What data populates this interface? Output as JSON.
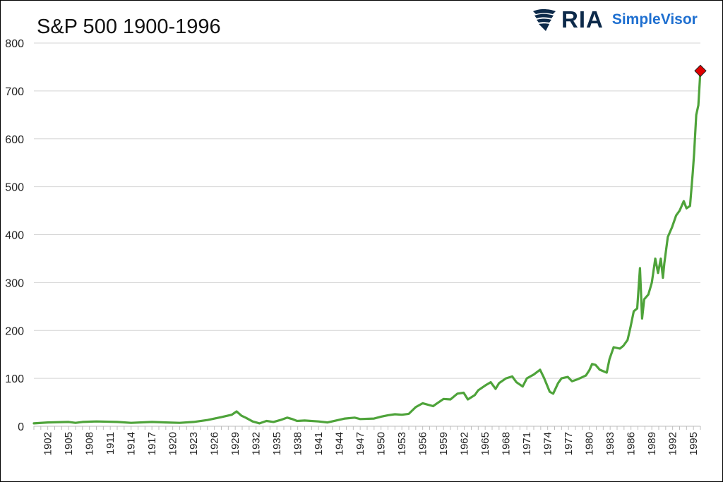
{
  "brand": {
    "name": "RIA",
    "product": "SimpleVisor",
    "colors": {
      "navy": "#0d2a4a",
      "blue": "#1e6fd0"
    }
  },
  "chart_data": {
    "type": "line",
    "title": "S&P 500 1900-1996",
    "xlabel": "",
    "ylabel": "",
    "xlim": [
      1900,
      1996
    ],
    "ylim": [
      0,
      800
    ],
    "yticks": [
      0,
      100,
      200,
      300,
      400,
      500,
      600,
      700,
      800
    ],
    "xtick_labels": [
      "1902",
      "1905",
      "1908",
      "1911",
      "1914",
      "1917",
      "1920",
      "1923",
      "1926",
      "1929",
      "1932",
      "1935",
      "1938",
      "1941",
      "1944",
      "1947",
      "1950",
      "1953",
      "1956",
      "1959",
      "1962",
      "1965",
      "1968",
      "1971",
      "1974",
      "1977",
      "1980",
      "1983",
      "1986",
      "1989",
      "1992",
      "1995"
    ],
    "grid": true,
    "legend": "none",
    "line_color": "#4ea33a",
    "marker_color": "#e00000",
    "series": [
      {
        "x": [
          1900,
          1902,
          1905,
          1906,
          1907,
          1909,
          1912,
          1914,
          1917,
          1919,
          1921,
          1923,
          1925,
          1927,
          1928.5,
          1929.2,
          1929.9,
          1930.5,
          1931.5,
          1932.5,
          1933.5,
          1934.5,
          1935.5,
          1936.5,
          1937.2,
          1937.9,
          1939,
          1941,
          1942.3,
          1943.5,
          1944.8,
          1946.2,
          1947,
          1949,
          1950,
          1951,
          1952,
          1953,
          1954,
          1955,
          1956,
          1957.5,
          1958,
          1959,
          1960,
          1961,
          1961.9,
          1962.5,
          1963.5,
          1964,
          1965,
          1965.8,
          1966.5,
          1967,
          1968,
          1968.9,
          1969.5,
          1970.4,
          1971,
          1972,
          1972.9,
          1973.5,
          1974.3,
          1974.8,
          1975.5,
          1976,
          1976.9,
          1977.5,
          1978.3,
          1978.9,
          1979.5,
          1980,
          1980.4,
          1980.9,
          1981.5,
          1982.5,
          1982.9,
          1983.5,
          1984.4,
          1984.9,
          1985.5,
          1985.9,
          1986.4,
          1986.9,
          1987.3,
          1987.6,
          1987.9,
          1988.5,
          1989,
          1989.5,
          1989.9,
          1990.3,
          1990.6,
          1990.8,
          1991.3,
          1991.9,
          1992.5,
          1993,
          1993.6,
          1994,
          1994.5,
          1994.9,
          1995.1,
          1995.4,
          1995.7,
          1996
        ],
        "y": [
          6,
          8,
          9,
          7,
          9,
          10,
          9,
          7,
          9,
          8,
          7,
          9,
          13,
          19,
          24,
          31,
          22,
          18,
          10,
          6,
          11,
          9,
          13,
          18,
          15,
          11,
          12,
          10,
          8,
          12,
          16,
          18,
          15,
          16,
          20,
          23,
          25,
          24,
          26,
          40,
          48,
          42,
          47,
          57,
          56,
          68,
          70,
          56,
          65,
          75,
          85,
          92,
          78,
          90,
          100,
          104,
          92,
          83,
          100,
          108,
          118,
          100,
          72,
          68,
          90,
          100,
          103,
          94,
          98,
          102,
          106,
          117,
          130,
          128,
          118,
          112,
          140,
          165,
          162,
          168,
          180,
          205,
          240,
          246,
          330,
          225,
          265,
          275,
          300,
          350,
          320,
          350,
          310,
          340,
          395,
          415,
          440,
          450,
          470,
          455,
          460,
          530,
          570,
          650,
          670,
          742
        ]
      }
    ],
    "highlight_point": {
      "x": 1996,
      "y": 742
    }
  }
}
